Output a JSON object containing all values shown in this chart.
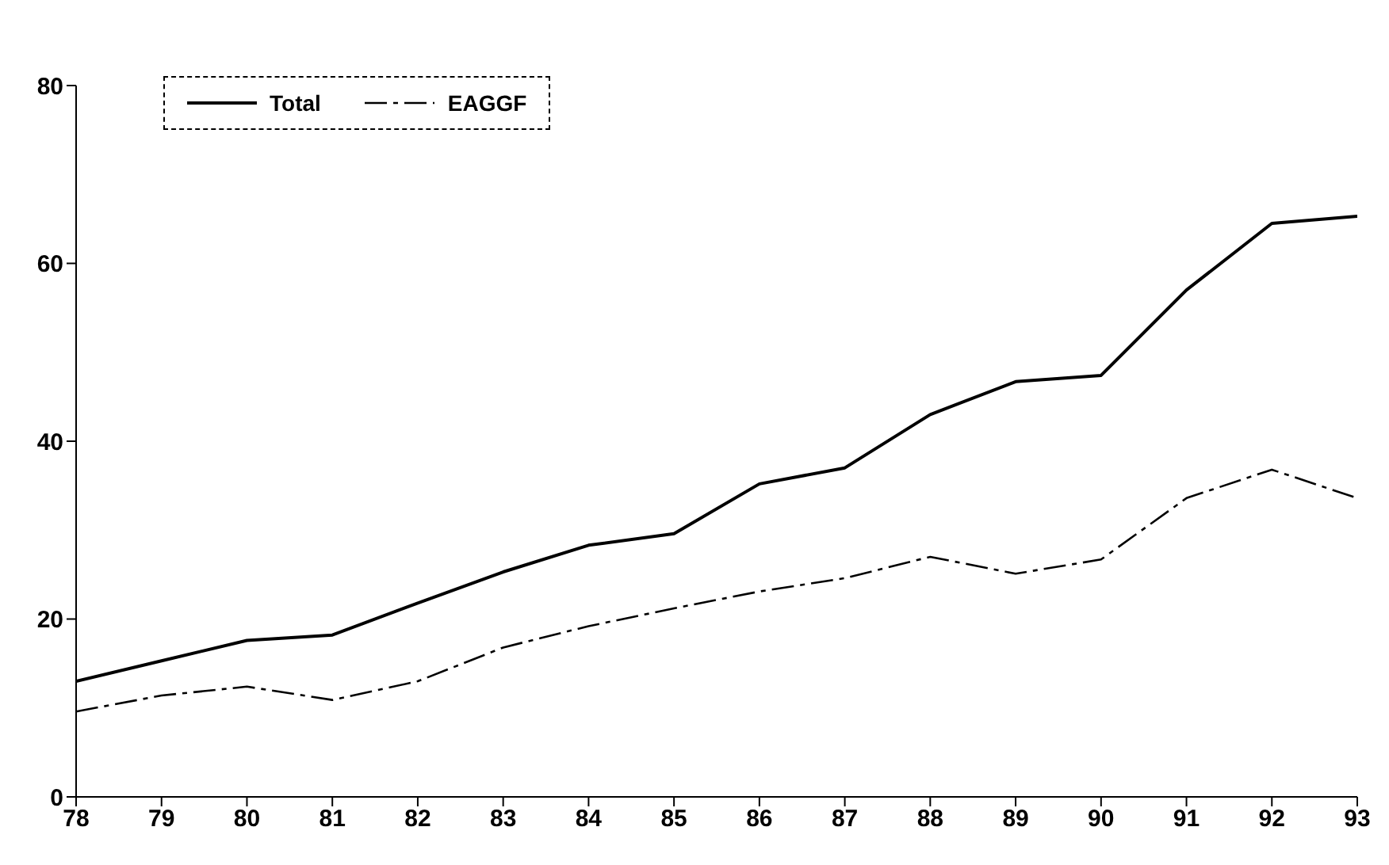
{
  "chart_data": {
    "type": "line",
    "x": [
      78,
      79,
      80,
      81,
      82,
      83,
      84,
      85,
      86,
      87,
      88,
      89,
      90,
      91,
      92,
      93
    ],
    "series": [
      {
        "name": "Total",
        "color": "#000000",
        "line_style": "solid",
        "values": [
          13.0,
          15.3,
          17.6,
          18.2,
          21.8,
          25.3,
          28.3,
          29.6,
          35.2,
          37.0,
          43.0,
          46.7,
          47.4,
          57.0,
          64.5,
          65.3
        ]
      },
      {
        "name": "EAGGF",
        "color": "#000000",
        "line_style": "dashed",
        "values": [
          9.6,
          11.4,
          12.4,
          10.9,
          13.0,
          16.8,
          19.2,
          21.2,
          23.1,
          24.6,
          27.0,
          25.1,
          26.7,
          33.6,
          36.8,
          33.6
        ]
      }
    ],
    "xlim": [
      78,
      93
    ],
    "xticks": [
      78,
      79,
      80,
      81,
      82,
      83,
      84,
      85,
      86,
      87,
      88,
      89,
      90,
      91,
      92,
      93
    ],
    "ylim": [
      0,
      80
    ],
    "yticks": [
      0,
      20,
      40,
      60,
      80
    ],
    "grid": false,
    "legend": "top left",
    "marker": "none"
  }
}
